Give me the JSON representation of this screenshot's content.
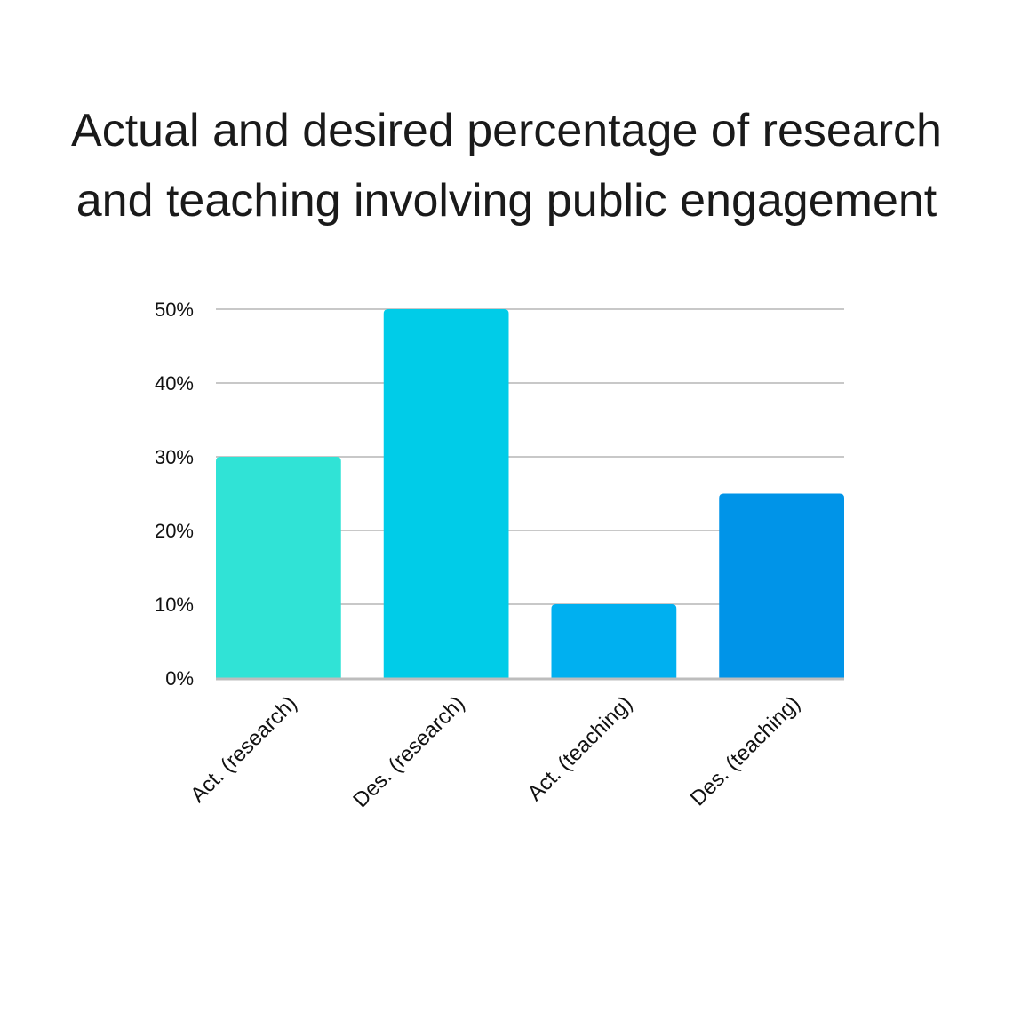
{
  "chart_data": {
    "type": "bar",
    "title_lines": [
      "Actual and desired percentage of research",
      "and teaching involving public engagement"
    ],
    "categories": [
      "Act. (research)",
      "Des. (research)",
      "Act. (teaching)",
      "Des. (teaching)"
    ],
    "values": [
      30,
      50,
      10,
      25
    ],
    "bar_colors": [
      "#30E3D6",
      "#00CCE8",
      "#00B0F0",
      "#0094E8"
    ],
    "ylim": [
      0,
      50
    ],
    "yticks": [
      0,
      10,
      20,
      30,
      40,
      50
    ],
    "ytick_labels": [
      "0%",
      "10%",
      "20%",
      "30%",
      "40%",
      "50%"
    ],
    "grid": true,
    "grid_color": "#c8c8c8",
    "axis_color": "#bdbdbd",
    "xlabel": "",
    "ylabel": ""
  }
}
